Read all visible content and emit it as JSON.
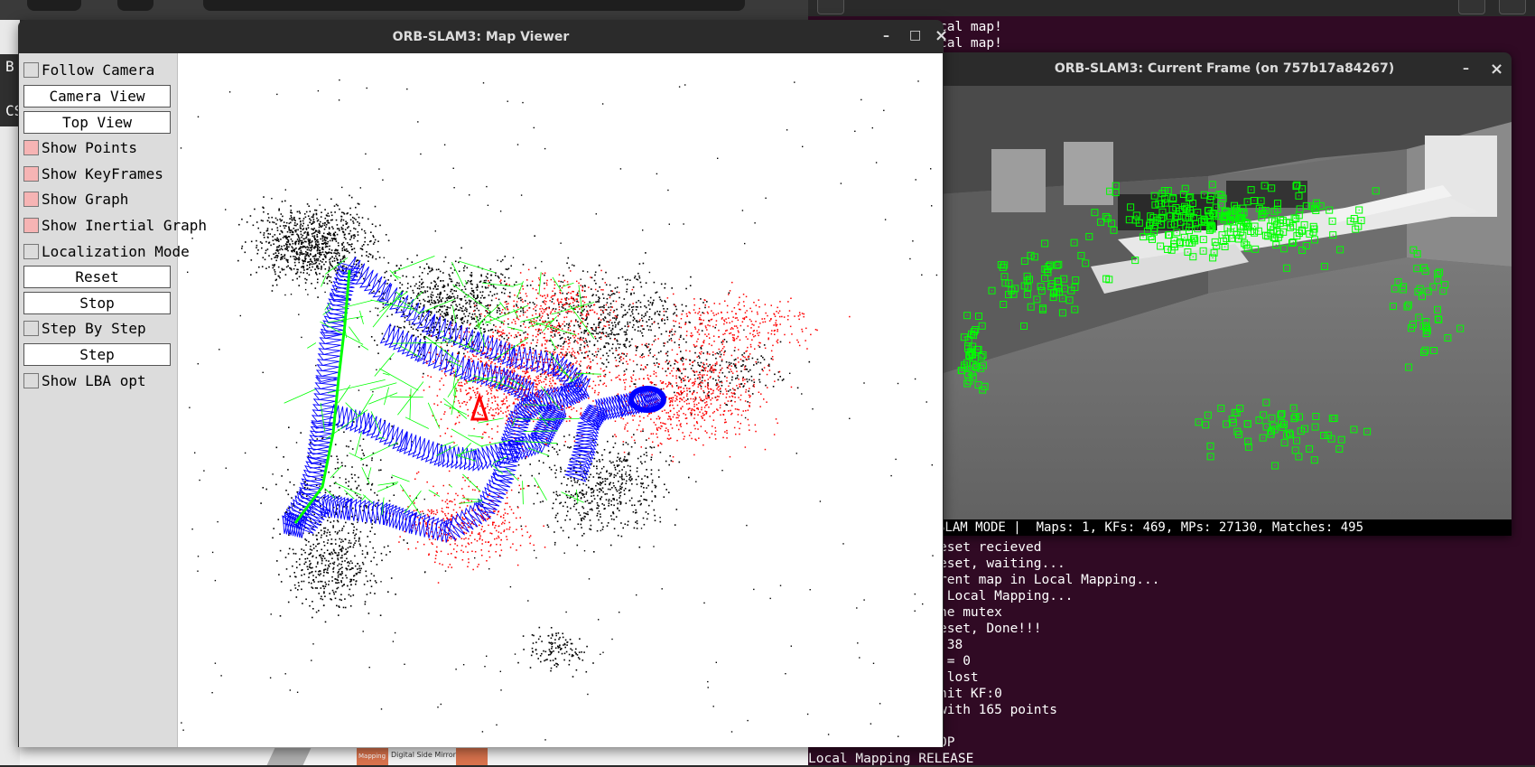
{
  "map_viewer": {
    "title": "ORB-SLAM3: Map Viewer",
    "window_controls": {
      "minimize": "–",
      "maximize": "□",
      "close": "×"
    },
    "panel": {
      "follow_camera": {
        "label": "Follow Camera",
        "checked": false
      },
      "camera_view": "Camera View",
      "top_view": "Top View",
      "show_points": {
        "label": "Show Points",
        "checked": true
      },
      "show_keyframes": {
        "label": "Show KeyFrames",
        "checked": true
      },
      "show_graph": {
        "label": "Show Graph",
        "checked": true
      },
      "show_inertial_graph": {
        "label": "Show Inertial Graph",
        "checked": true
      },
      "localization_mode": {
        "label": "Localization Mode",
        "checked": false
      },
      "reset": "Reset",
      "stop": "Stop",
      "step_by_step": {
        "label": "Step By Step",
        "checked": false
      },
      "step": "Step",
      "show_lba_opt": {
        "label": "Show LBA opt",
        "checked": false
      }
    },
    "colors": {
      "points": "#000000",
      "local_points": "#ff0000",
      "keyframes": "#0000ff",
      "graph": "#00ff00",
      "current_camera": "#ff0000"
    }
  },
  "current_frame": {
    "title": "ORB-SLAM3: Current Frame (on 757b17a84267)",
    "window_controls": {
      "minimize": "–",
      "close": "×"
    },
    "status": "SLAM MODE |  Maps: 1, KFs: 469, MPs: 27130, Matches: 495",
    "feature_color": "#00ff00"
  },
  "terminal": {
    "lines_top": [
      "cal map!",
      "cal map!"
    ],
    "lines_bottom": [
      "eset recieved",
      "eset, waiting...",
      "rent map in Local Mapping...",
      " Local Mapping...",
      "he mutex",
      "eset, Done!!!",
      " 38",
      " = 0",
      " lost",
      "nit KF:0",
      "with 165 points",
      "",
      "OP",
      "Local Mapping RELEASE"
    ]
  },
  "background": {
    "left_letters": [
      "B",
      "CS"
    ],
    "bottom_text": "Digital Side Mirror",
    "bottom_left_label": "Mapping"
  }
}
